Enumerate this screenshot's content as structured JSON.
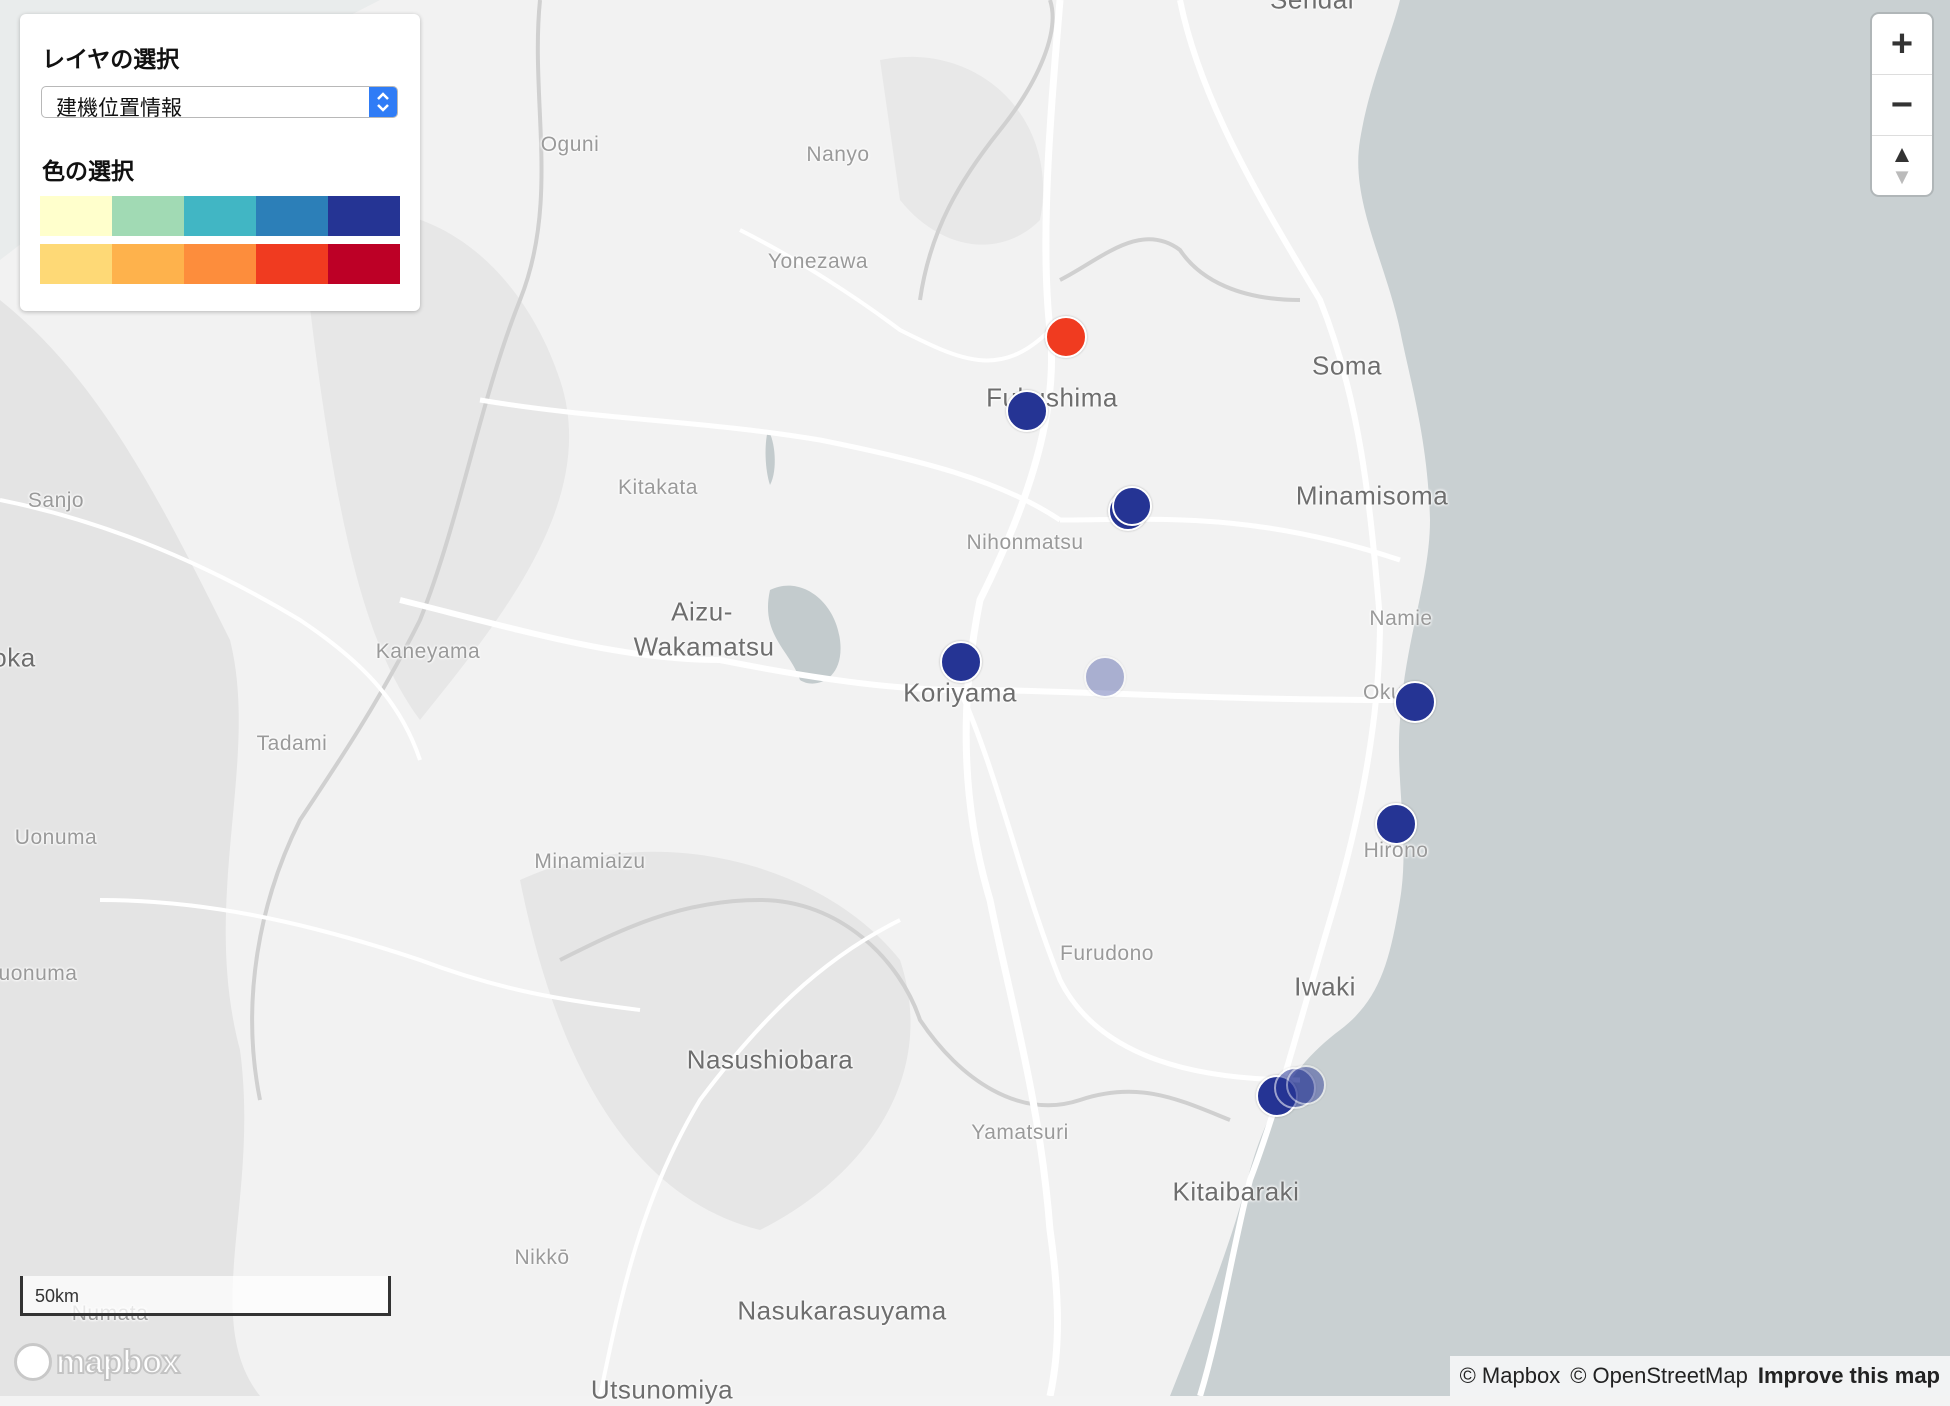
{
  "map": {
    "places": [
      {
        "name": "Sendai",
        "cls": "big"
      },
      {
        "name": "Oguni",
        "cls": "small"
      },
      {
        "name": "Nanyo",
        "cls": "small"
      },
      {
        "name": "Yonezawa",
        "cls": "small"
      },
      {
        "name": "Soma",
        "cls": "big"
      },
      {
        "name": "Fukushima",
        "cls": "big"
      },
      {
        "name": "Sanjo",
        "cls": "small"
      },
      {
        "name": "Kitakata",
        "cls": "small"
      },
      {
        "name": "Minamisoma",
        "cls": "big"
      },
      {
        "name": "Nihonmatsu",
        "cls": "small"
      },
      {
        "name": "Namie",
        "cls": "small"
      },
      {
        "name": "Aizu-",
        "cls": "big"
      },
      {
        "name": "Wakamatsu",
        "cls": "big"
      },
      {
        "name": "oka",
        "cls": "big"
      },
      {
        "name": "Kaneyama",
        "cls": "small"
      },
      {
        "name": "Koriyama",
        "cls": "big"
      },
      {
        "name": "Okum",
        "cls": "small"
      },
      {
        "name": "Tadami",
        "cls": "small"
      },
      {
        "name": "Uonuma",
        "cls": "small"
      },
      {
        "name": "Hirono",
        "cls": "small"
      },
      {
        "name": "Minamiaizu",
        "cls": "small"
      },
      {
        "name": "Furudono",
        "cls": "small"
      },
      {
        "name": "uonuma",
        "cls": "small"
      },
      {
        "name": "Iwaki",
        "cls": "big"
      },
      {
        "name": "Nasushiobara",
        "cls": "big"
      },
      {
        "name": "Yamatsuri",
        "cls": "small"
      },
      {
        "name": "Kitaibaraki",
        "cls": "big"
      },
      {
        "name": "Nikkō",
        "cls": "small"
      },
      {
        "name": "Numata",
        "cls": "small"
      },
      {
        "name": "Nasukarasuyama",
        "cls": "big"
      },
      {
        "name": "Utsunomiya",
        "cls": "big"
      }
    ],
    "markers": [
      {
        "name": "marker-fukushima-north",
        "color": "#f03b20",
        "opacity": 1
      },
      {
        "name": "marker-fukushima",
        "color": "#253494",
        "opacity": 1
      },
      {
        "name": "marker-nihonmatsu-a",
        "color": "#253494",
        "opacity": 1
      },
      {
        "name": "marker-nihonmatsu-b",
        "color": "#253494",
        "opacity": 1
      },
      {
        "name": "marker-koriyama",
        "color": "#253494",
        "opacity": 1
      },
      {
        "name": "marker-koriyama-east",
        "color": "#253494",
        "opacity": 0.35
      },
      {
        "name": "marker-okuma",
        "color": "#253494",
        "opacity": 1
      },
      {
        "name": "marker-hirono",
        "color": "#253494",
        "opacity": 1
      },
      {
        "name": "marker-iwaki-a",
        "color": "#253494",
        "opacity": 1
      },
      {
        "name": "marker-iwaki-b",
        "color": "#253494",
        "opacity": 0.55
      },
      {
        "name": "marker-iwaki-c",
        "color": "#253494",
        "opacity": 0.45
      }
    ]
  },
  "panel": {
    "layer_title": "レイヤの選択",
    "layer_value": "建機位置情報",
    "color_title": "色の選択",
    "ramp_cool": [
      "#ffffcc",
      "#a1dab4",
      "#41b6c4",
      "#2c7fb8",
      "#253494"
    ],
    "ramp_warm": [
      "#fed976",
      "#feb24c",
      "#fd8d3c",
      "#f03b20",
      "#bd0026"
    ]
  },
  "controls": {
    "zoom_in": "+",
    "zoom_out": "−",
    "compass": "▲"
  },
  "scale_label": "50km",
  "attribution": {
    "mapbox": "© Mapbox",
    "osm": "© OpenStreetMap",
    "improve": "Improve this map"
  },
  "logo_text": "mapbox"
}
